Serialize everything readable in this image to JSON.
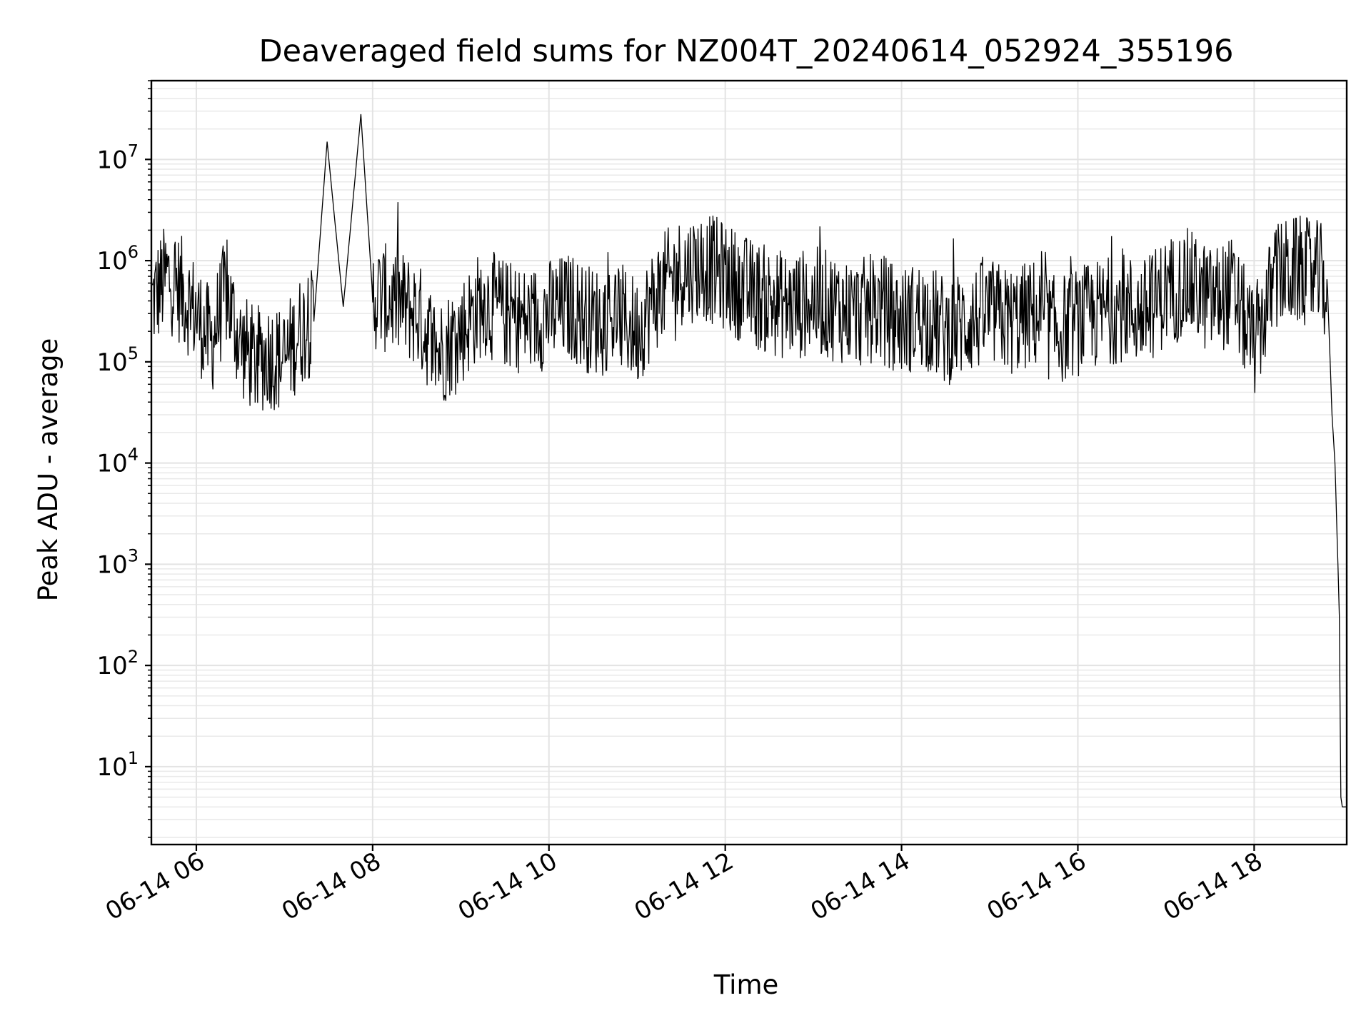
{
  "chart_data": {
    "type": "line",
    "title": "Deaveraged field sums for NZ004T_20240614_052924_355196",
    "xlabel": "Time",
    "ylabel": "Peak ADU - average",
    "x_scale": "time",
    "y_scale": "log",
    "xlim": [
      "2024-06-14T05:29:24",
      "2024-06-14T19:03:00"
    ],
    "ylim": [
      1.7,
      60000000
    ],
    "x_ticks": [
      "2024-06-14T06:00",
      "2024-06-14T08:00",
      "2024-06-14T10:00",
      "2024-06-14T12:00",
      "2024-06-14T14:00",
      "2024-06-14T16:00",
      "2024-06-14T18:00"
    ],
    "x_tick_labels": [
      "06-14 06",
      "06-14 08",
      "06-14 10",
      "06-14 12",
      "06-14 14",
      "06-14 16",
      "06-14 18"
    ],
    "y_ticks": [
      10,
      100,
      1000,
      10000,
      100000,
      1000000,
      10000000
    ],
    "y_tick_labels": [
      {
        "base": "10",
        "exp": "1"
      },
      {
        "base": "10",
        "exp": "2"
      },
      {
        "base": "10",
        "exp": "3"
      },
      {
        "base": "10",
        "exp": "4"
      },
      {
        "base": "10",
        "exp": "5"
      },
      {
        "base": "10",
        "exp": "6"
      },
      {
        "base": "10",
        "exp": "7"
      }
    ],
    "grid": true,
    "series_color": "#000000",
    "series": [
      {
        "x": [
          "2024-06-14T05:30",
          "2024-06-14T05:40",
          "2024-06-14T05:50",
          "2024-06-14T06:00",
          "2024-06-14T06:10",
          "2024-06-14T06:20",
          "2024-06-14T06:30",
          "2024-06-14T06:40",
          "2024-06-14T06:50",
          "2024-06-14T07:00",
          "2024-06-14T07:10",
          "2024-06-14T07:20",
          "2024-06-14T07:29",
          "2024-06-14T07:40",
          "2024-06-14T07:52",
          "2024-06-14T08:00",
          "2024-06-14T08:15",
          "2024-06-14T08:30",
          "2024-06-14T08:45",
          "2024-06-14T09:00",
          "2024-06-14T09:15",
          "2024-06-14T09:30",
          "2024-06-14T09:45",
          "2024-06-14T10:00",
          "2024-06-14T10:15",
          "2024-06-14T10:30",
          "2024-06-14T10:45",
          "2024-06-14T11:00",
          "2024-06-14T11:15",
          "2024-06-14T11:30",
          "2024-06-14T11:45",
          "2024-06-14T12:00",
          "2024-06-14T12:15",
          "2024-06-14T12:30",
          "2024-06-14T12:45",
          "2024-06-14T13:00",
          "2024-06-14T13:15",
          "2024-06-14T13:30",
          "2024-06-14T13:45",
          "2024-06-14T14:00",
          "2024-06-14T14:15",
          "2024-06-14T14:30",
          "2024-06-14T14:45",
          "2024-06-14T15:00",
          "2024-06-14T15:15",
          "2024-06-14T15:30",
          "2024-06-14T15:45",
          "2024-06-14T16:00",
          "2024-06-14T16:15",
          "2024-06-14T16:30",
          "2024-06-14T16:45",
          "2024-06-14T17:00",
          "2024-06-14T17:15",
          "2024-06-14T17:30",
          "2024-06-14T17:45",
          "2024-06-14T18:00",
          "2024-06-14T18:15",
          "2024-06-14T18:30",
          "2024-06-14T18:45",
          "2024-06-14T18:50",
          "2024-06-14T18:53",
          "2024-06-14T18:55",
          "2024-06-14T18:57",
          "2024-06-14T18:58",
          "2024-06-14T18:59",
          "2024-06-14T19:00",
          "2024-06-14T19:03"
        ],
        "y": [
          400000,
          700000,
          500000,
          300000,
          150000,
          500000,
          150000,
          100000,
          120000,
          100000,
          200000,
          250000,
          15000000,
          350000,
          28000000,
          450000,
          400000,
          300000,
          120000,
          200000,
          400000,
          300000,
          250000,
          300000,
          350000,
          250000,
          300000,
          200000,
          500000,
          800000,
          900000,
          700000,
          500000,
          400000,
          350000,
          400000,
          350000,
          300000,
          350000,
          250000,
          300000,
          200000,
          250000,
          300000,
          250000,
          300000,
          200000,
          250000,
          300000,
          350000,
          300000,
          500000,
          600000,
          400000,
          500000,
          150000,
          700000,
          800000,
          700000,
          500000,
          30000,
          10000,
          1000,
          300,
          5,
          4,
          4
        ]
      }
    ]
  }
}
